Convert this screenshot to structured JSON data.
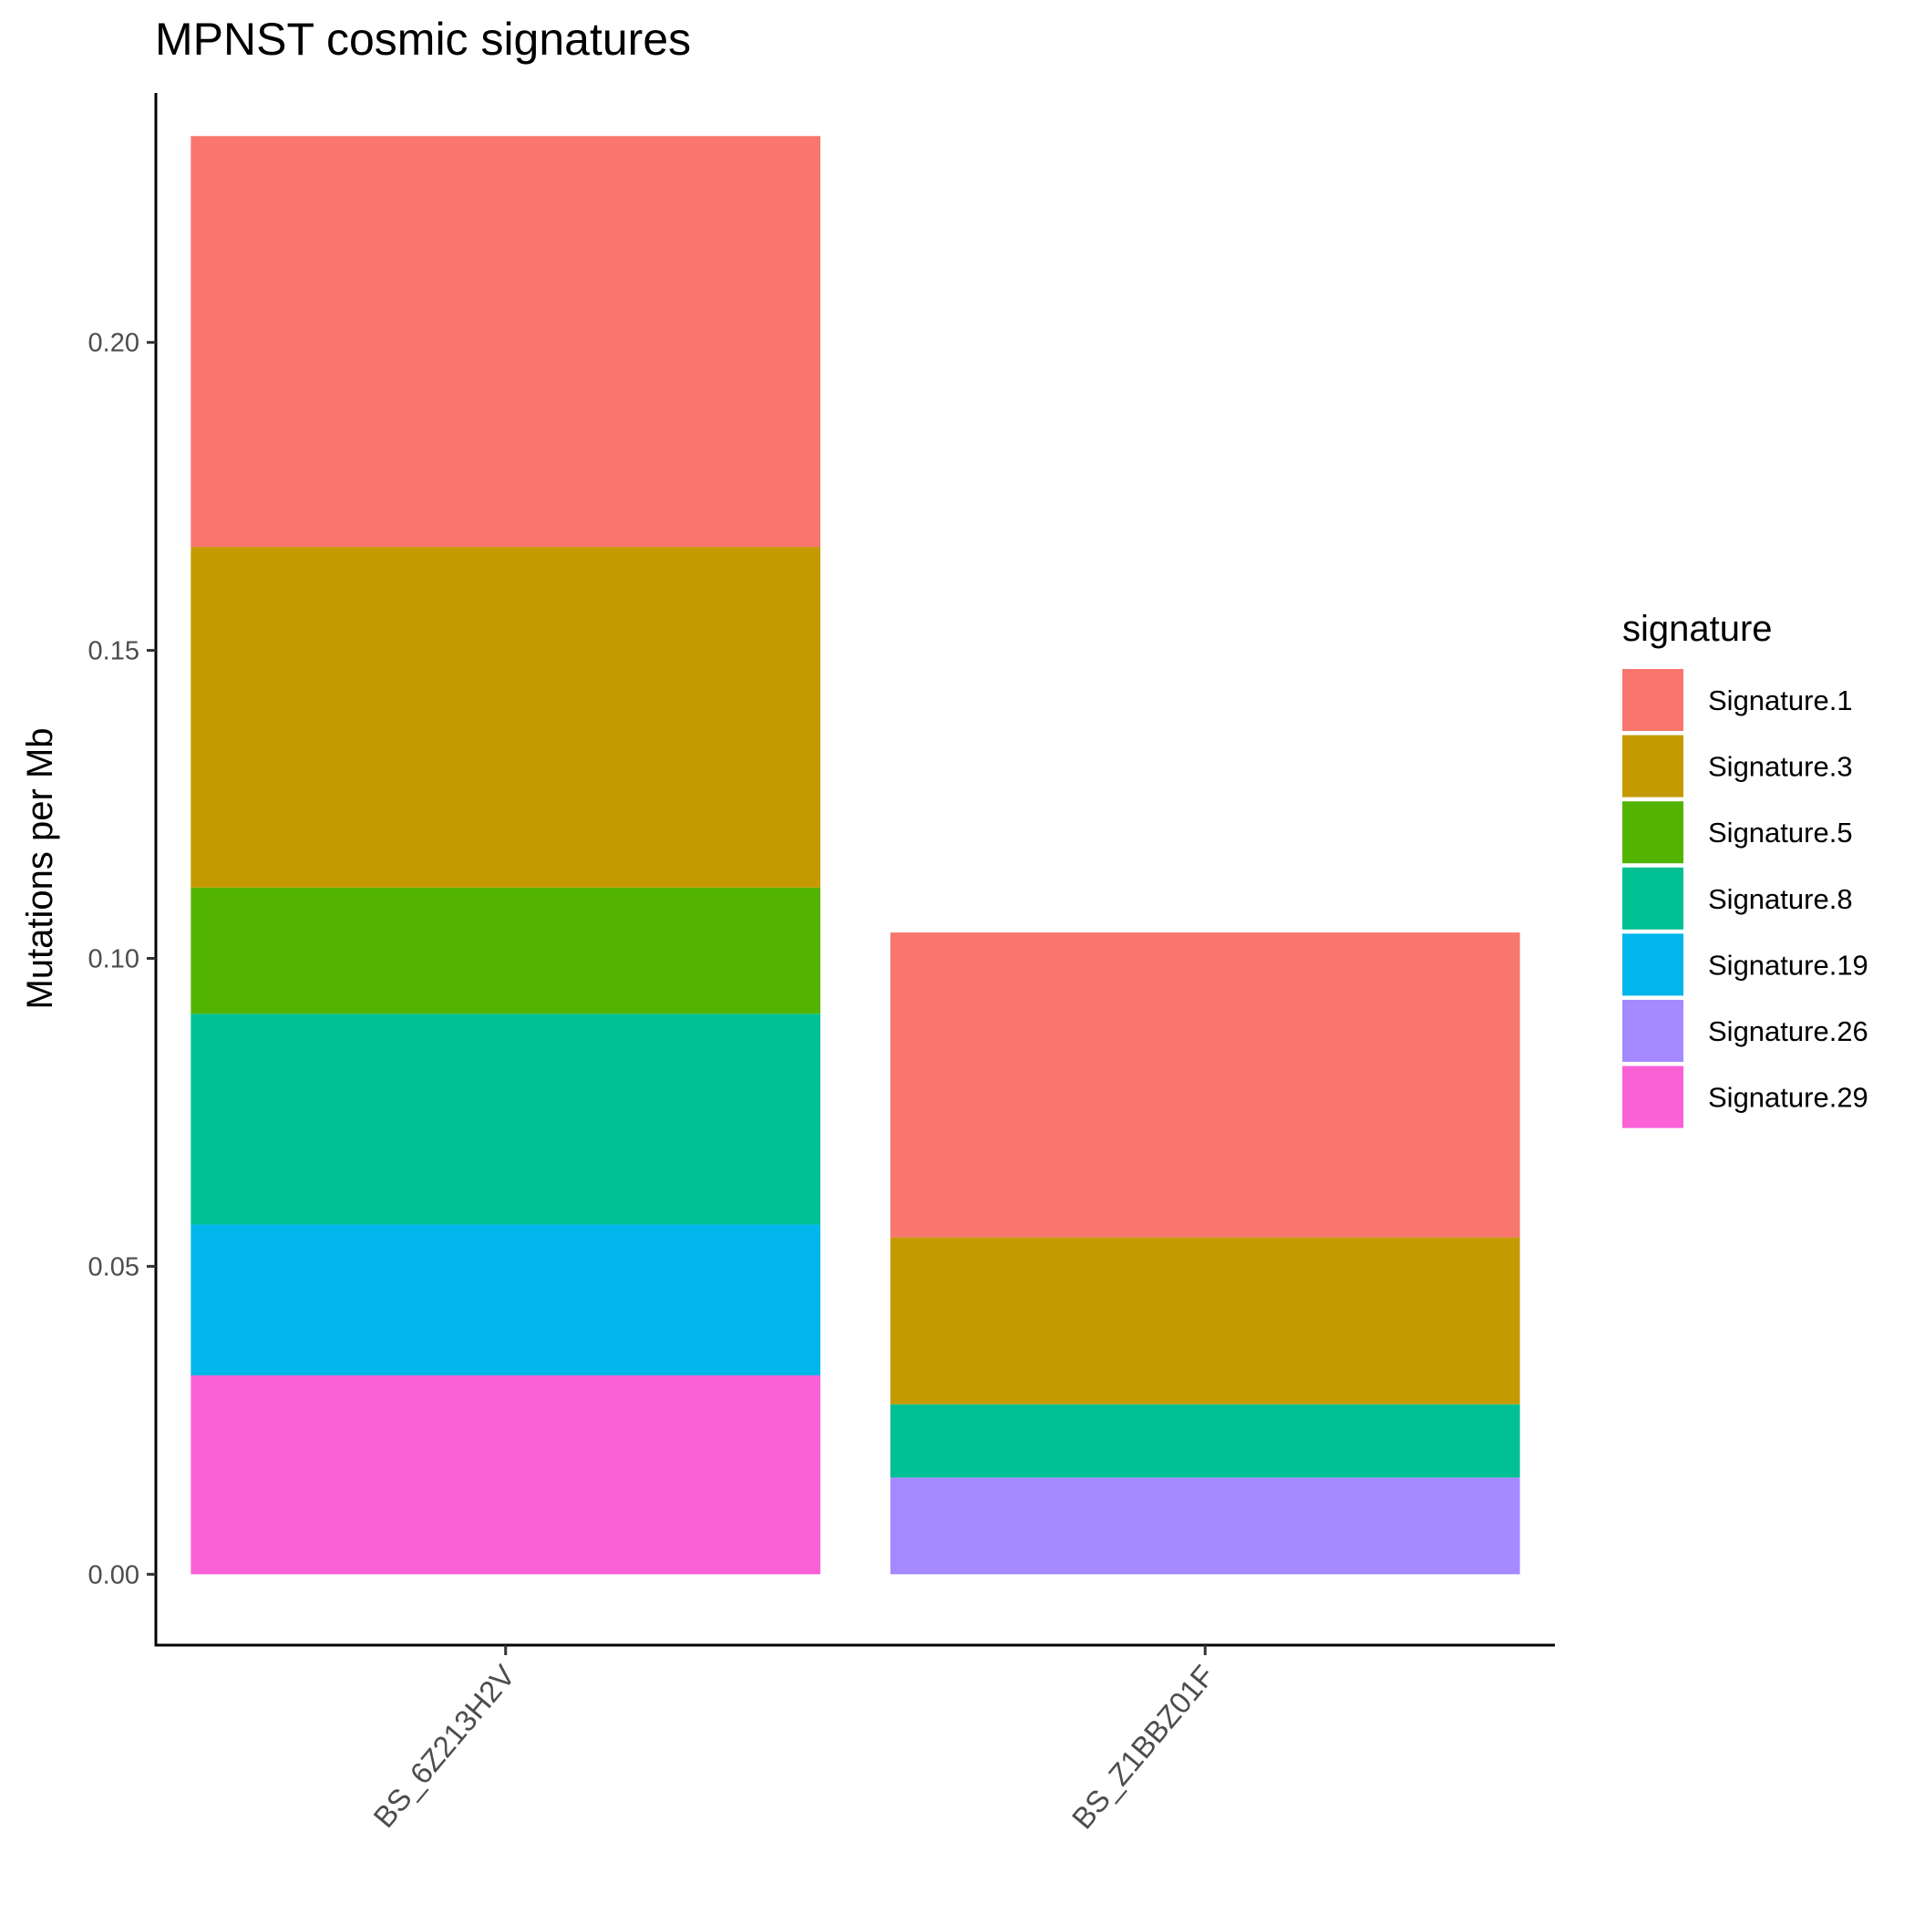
{
  "chart_data": {
    "type": "bar",
    "stacked": true,
    "title": "MPNST cosmic signatures",
    "xlabel": "",
    "ylabel": "Mutations per Mb",
    "ylim": [
      -0.0115,
      0.2405
    ],
    "yticks": [
      0.0,
      0.05,
      0.1,
      0.15,
      0.2
    ],
    "ytick_labels": [
      "0.00",
      "0.05",
      "0.10",
      "0.15",
      "0.20"
    ],
    "categories": [
      "BS_6Z213H2V",
      "BS_Z1BBZ01F"
    ],
    "legend": {
      "title": "signature",
      "position": "right"
    },
    "grid": false,
    "series": [
      {
        "name": "Signature.1",
        "color": "#F8766D",
        "values": [
          0.0667,
          0.0495
        ]
      },
      {
        "name": "Signature.3",
        "color": "#C49A00",
        "values": [
          0.0553,
          0.0271
        ]
      },
      {
        "name": "Signature.5",
        "color": "#53B400",
        "values": [
          0.0205,
          0.0
        ]
      },
      {
        "name": "Signature.8",
        "color": "#00C094",
        "values": [
          0.0342,
          0.0119
        ]
      },
      {
        "name": "Signature.19",
        "color": "#00B6EB",
        "values": [
          0.0245,
          0.0
        ]
      },
      {
        "name": "Signature.26",
        "color": "#A58AFF",
        "values": [
          0.0,
          0.0157
        ]
      },
      {
        "name": "Signature.29",
        "color": "#FB61D7",
        "values": [
          0.0323,
          0.0
        ]
      }
    ]
  }
}
